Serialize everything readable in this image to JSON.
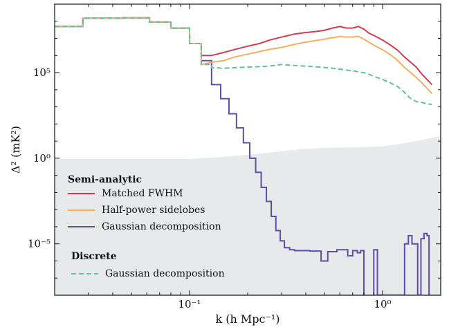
{
  "chart_data": {
    "type": "line",
    "title": "",
    "xlabel": "k (h Mpc⁻¹)",
    "ylabel": "Δ² (mK²)",
    "xscale": "log",
    "yscale": "log",
    "xlim": [
      0.02,
      2.0
    ],
    "ylim": [
      1e-08,
      1000000000.0
    ],
    "x_ticks": [
      {
        "value": 0.1,
        "label": "10⁻¹"
      },
      {
        "value": 1.0,
        "label": "10⁰"
      }
    ],
    "y_ticks": [
      {
        "value": 100000.0,
        "label": "10⁵"
      },
      {
        "value": 1.0,
        "label": "10⁰"
      },
      {
        "value": 1e-05,
        "label": "10⁻⁵"
      }
    ],
    "legend": {
      "placement": "lower-left",
      "groups": [
        {
          "title": "Semi-analytic",
          "entries": [
            "Matched FWHM",
            "Half-power sidelobes",
            "Gaussian decomposition"
          ]
        },
        {
          "title": "Discrete",
          "entries": [
            "Gaussian decomposition"
          ]
        }
      ]
    },
    "shaded_region": {
      "color": "#e8e9eb",
      "x": [
        0.02,
        0.1,
        0.15,
        0.2,
        0.25,
        0.3,
        0.4,
        0.5,
        0.6,
        0.7,
        0.8,
        1.0,
        1.2,
        1.5,
        2.0
      ],
      "y_upper": [
        0.9,
        0.9,
        1.2,
        1.6,
        2.0,
        2.6,
        3.5,
        4.0,
        4.2,
        4.3,
        4.5,
        5.0,
        6.5,
        10,
        20
      ]
    },
    "series": [
      {
        "name": "Matched FWHM",
        "color": "#d6394f",
        "style": "solid",
        "x": [
          0.02,
          0.028,
          0.028,
          0.045,
          0.045,
          0.062,
          0.062,
          0.08,
          0.08,
          0.1,
          0.1,
          0.115,
          0.115,
          0.13,
          0.15,
          0.17,
          0.2,
          0.23,
          0.26,
          0.3,
          0.35,
          0.4,
          0.45,
          0.5,
          0.55,
          0.6,
          0.65,
          0.7,
          0.75,
          0.8,
          0.85,
          0.9,
          1.0,
          1.1,
          1.2,
          1.3,
          1.4,
          1.5,
          1.6,
          1.7,
          1.8
        ],
        "y": [
          50000000.0,
          50000000.0,
          150000000.0,
          150000000.0,
          160000000.0,
          160000000.0,
          90000000.0,
          90000000.0,
          40000000.0,
          40000000.0,
          5000000.0,
          5000000.0,
          1000000.0,
          1000000.0,
          1500000.0,
          2200000.0,
          3500000.0,
          5000000.0,
          8000000.0,
          12000000.0,
          18000000.0,
          22000000.0,
          25000000.0,
          30000000.0,
          40000000.0,
          50000000.0,
          40000000.0,
          40000000.0,
          50000000.0,
          35000000.0,
          20000000.0,
          15000000.0,
          8000000.0,
          4000000.0,
          2000000.0,
          800000.0,
          400000.0,
          200000.0,
          80000.0,
          40000.0,
          20000.0
        ]
      },
      {
        "name": "Half-power sidelobes",
        "color": "#f6ae5e",
        "style": "solid",
        "x": [
          0.02,
          0.028,
          0.028,
          0.045,
          0.045,
          0.062,
          0.062,
          0.08,
          0.08,
          0.1,
          0.1,
          0.115,
          0.115,
          0.13,
          0.15,
          0.17,
          0.2,
          0.23,
          0.26,
          0.3,
          0.35,
          0.4,
          0.45,
          0.5,
          0.55,
          0.6,
          0.65,
          0.7,
          0.75,
          0.8,
          0.85,
          0.9,
          1.0,
          1.1,
          1.2,
          1.3,
          1.4,
          1.5,
          1.6,
          1.7,
          1.8
        ],
        "y": [
          50000000.0,
          50000000.0,
          150000000.0,
          150000000.0,
          160000000.0,
          160000000.0,
          90000000.0,
          90000000.0,
          40000000.0,
          40000000.0,
          5000000.0,
          5000000.0,
          300000.0,
          400000.0,
          500000.0,
          800000.0,
          1200000.0,
          1700000.0,
          2300000.0,
          3000000.0,
          4500000.0,
          6000000.0,
          7500000.0,
          9000000.0,
          11000000.0,
          13000000.0,
          12000000.0,
          12000000.0,
          13000000.0,
          9000000.0,
          6000000.0,
          4000000.0,
          2200000.0,
          1100000.0,
          500000.0,
          200000.0,
          100000.0,
          50000.0,
          25000.0,
          12000.0,
          6000.0
        ]
      },
      {
        "name": "Gaussian decomposition",
        "color": "#5a4fa8",
        "style": "solid",
        "x": [
          0.02,
          0.028,
          0.028,
          0.045,
          0.045,
          0.062,
          0.062,
          0.08,
          0.08,
          0.1,
          0.1,
          0.115,
          0.115,
          0.13,
          0.13,
          0.145,
          0.145,
          0.16,
          0.16,
          0.175,
          0.175,
          0.19,
          0.19,
          0.205,
          0.205,
          0.22,
          0.22,
          0.235,
          0.235,
          0.25,
          0.25,
          0.265,
          0.265,
          0.28,
          0.28,
          0.295,
          0.295,
          0.31,
          0.31,
          0.33,
          0.33,
          0.35,
          0.35,
          0.37,
          0.37,
          0.39,
          0.39,
          0.42,
          0.42,
          0.48,
          0.48,
          0.52,
          0.52,
          0.58,
          0.58,
          0.66,
          0.66,
          0.7,
          0.7,
          0.74,
          0.74,
          0.77,
          0.77,
          0.8,
          0.8
        ],
        "y": [
          50000000.0,
          50000000.0,
          150000000.0,
          150000000.0,
          160000000.0,
          160000000.0,
          90000000.0,
          90000000.0,
          40000000.0,
          40000000.0,
          5000000.0,
          5000000.0,
          500000.0,
          500000.0,
          20000.0,
          20000.0,
          3000.0,
          3000.0,
          400,
          400,
          60,
          60,
          8,
          8,
          1,
          1,
          0.15,
          0.15,
          0.02,
          0.02,
          0.003,
          0.003,
          0.0004,
          0.0004,
          6e-05,
          6e-05,
          1.5e-05,
          1.5e-05,
          6e-06,
          6e-06,
          4.5e-06,
          4.5e-06,
          4e-06,
          4e-06,
          4e-06,
          4e-06,
          4e-06,
          4e-06,
          3.8e-06,
          3.8e-06,
          1e-06,
          1e-06,
          3.5e-06,
          3.5e-06,
          4.5e-06,
          4.5e-06,
          2e-06,
          2e-06,
          4e-06,
          4e-06,
          3e-06,
          3e-06,
          4e-06,
          4e-06,
          1e-08
        ]
      },
      {
        "name": "Gaussian decomposition",
        "color": "#5a4fa8",
        "style": "solid",
        "x": [
          0.9,
          0.9,
          0.94,
          0.94,
          1.3,
          1.3,
          1.36,
          1.36,
          1.42,
          1.42,
          1.52,
          1.52,
          1.58,
          1.58,
          1.64,
          1.64,
          1.7,
          1.7,
          1.74,
          1.74
        ],
        "y": [
          1e-08,
          4.5e-06,
          4.5e-06,
          1e-08,
          1e-08,
          1e-05,
          1e-05,
          3e-05,
          3e-05,
          1e-05,
          1e-05,
          1e-08,
          1e-08,
          2e-05,
          2e-05,
          4e-05,
          4e-05,
          3e-05,
          3e-05,
          1e-08
        ]
      },
      {
        "name": "Gaussian decomposition",
        "color": "#5ebfa4",
        "style": "dashed",
        "x": [
          0.02,
          0.028,
          0.028,
          0.045,
          0.045,
          0.062,
          0.062,
          0.08,
          0.08,
          0.1,
          0.1,
          0.115,
          0.115,
          0.13,
          0.13,
          0.15,
          0.18,
          0.22,
          0.26,
          0.3,
          0.35,
          0.4,
          0.45,
          0.5,
          0.55,
          0.6,
          0.65,
          0.7,
          0.75,
          0.8,
          0.85,
          0.9,
          1.0,
          1.1,
          1.2,
          1.3,
          1.4,
          1.5,
          1.6,
          1.7,
          1.8
        ],
        "y": [
          50000000.0,
          50000000.0,
          150000000.0,
          150000000.0,
          160000000.0,
          160000000.0,
          90000000.0,
          90000000.0,
          40000000.0,
          40000000.0,
          5000000.0,
          5000000.0,
          300000.0,
          300000.0,
          200000.0,
          180000.0,
          200000.0,
          220000.0,
          240000.0,
          300000.0,
          260000.0,
          240000.0,
          220000.0,
          200000.0,
          180000.0,
          160000.0,
          140000.0,
          130000.0,
          110000.0,
          100000.0,
          80000.0,
          60000.0,
          40000.0,
          25000.0,
          15000.0,
          7000.0,
          3000.0,
          2000.0,
          1800.0,
          1500.0,
          1400.0
        ]
      }
    ]
  }
}
